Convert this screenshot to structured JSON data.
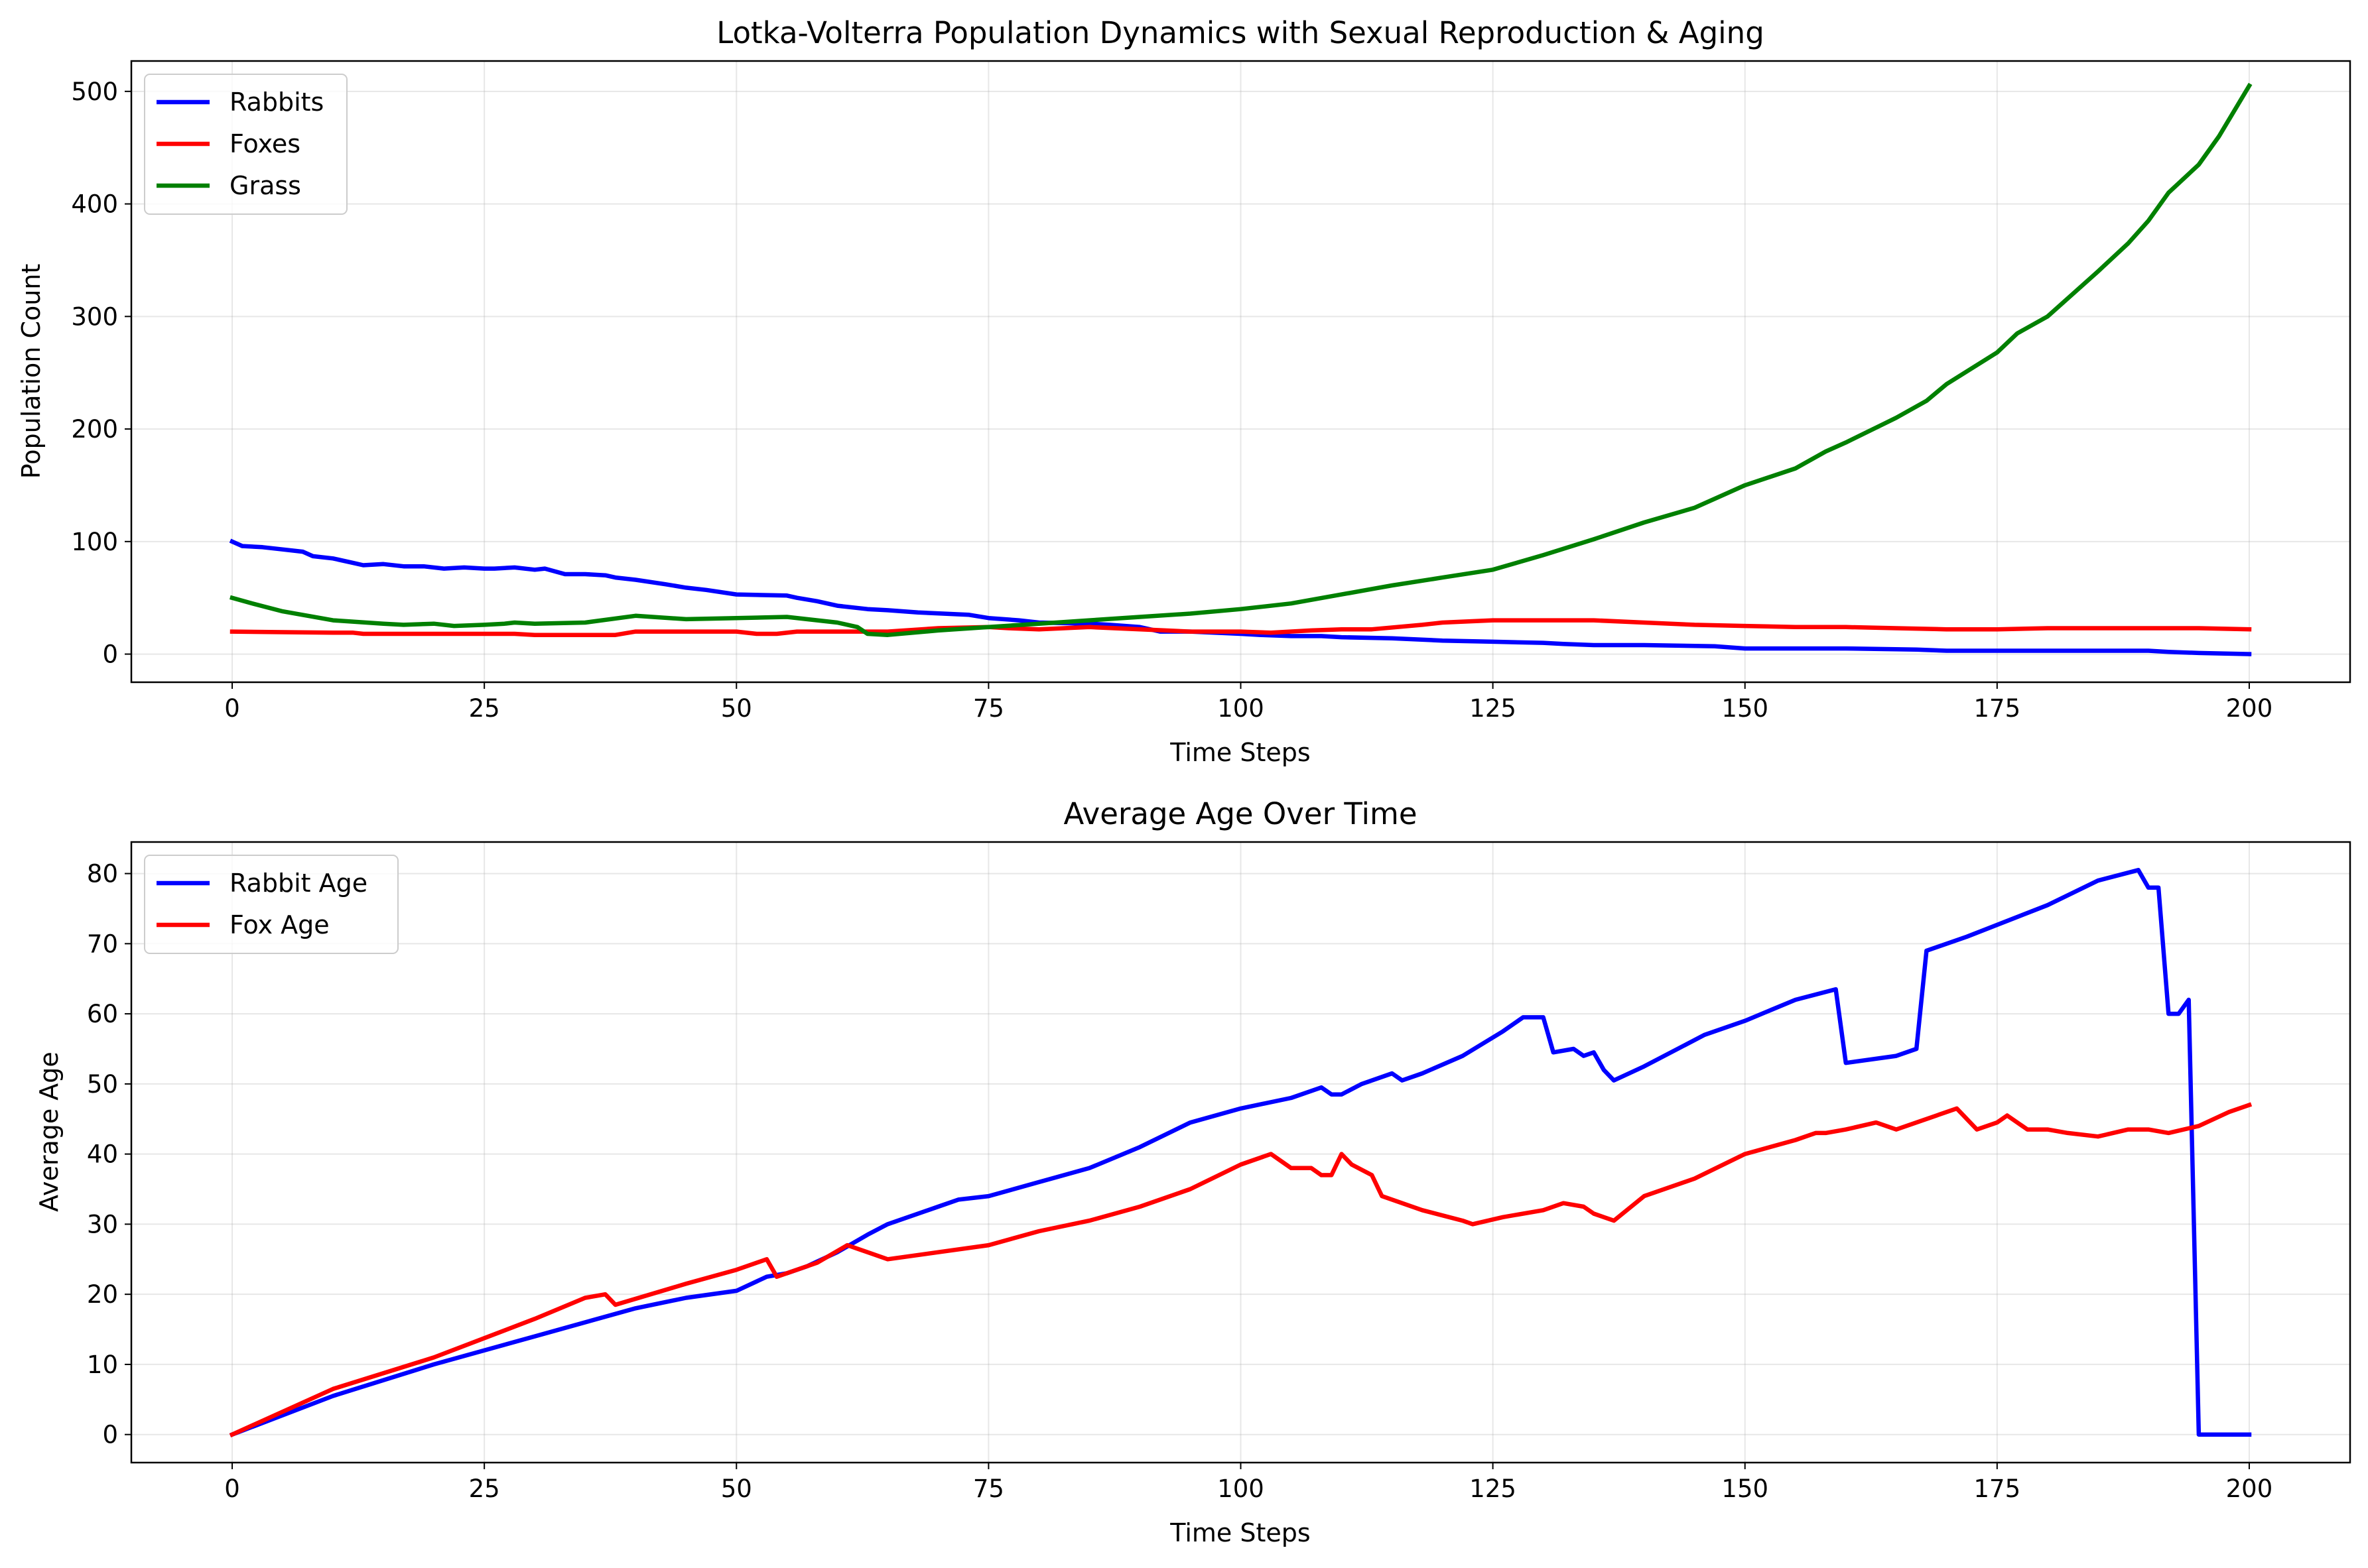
{
  "chart_data": [
    {
      "type": "line",
      "title": "Lotka-Volterra Population Dynamics with Sexual Reproduction & Aging",
      "xlabel": "Time Steps",
      "ylabel": "Population Count",
      "xlim": [
        -10,
        210
      ],
      "ylim": [
        -25,
        527
      ],
      "xticks": [
        0,
        25,
        50,
        75,
        100,
        125,
        150,
        175,
        200
      ],
      "yticks": [
        0,
        100,
        200,
        300,
        400,
        500
      ],
      "grid": true,
      "legend_position": "upper-left",
      "series": [
        {
          "name": "Rabbits",
          "color": "#0000ff",
          "x": [
            0,
            1,
            3,
            5,
            7,
            8,
            10,
            12,
            13,
            15,
            17,
            19,
            21,
            23,
            25,
            26,
            28,
            30,
            31,
            33,
            35,
            37,
            38,
            40,
            43,
            45,
            47,
            50,
            55,
            56,
            58,
            60,
            63,
            65,
            68,
            73,
            75,
            78,
            80,
            85,
            87,
            90,
            92,
            95,
            100,
            102,
            105,
            108,
            110,
            115,
            120,
            125,
            130,
            132,
            135,
            137,
            140,
            147,
            150,
            155,
            160,
            167,
            170,
            175,
            185,
            190,
            192,
            195,
            200
          ],
          "y": [
            100,
            96,
            95,
            93,
            91,
            87,
            85,
            81,
            79,
            80,
            78,
            78,
            76,
            77,
            76,
            76,
            77,
            75,
            76,
            71,
            71,
            70,
            68,
            66,
            62,
            59,
            57,
            53,
            52,
            50,
            47,
            43,
            40,
            39,
            37,
            35,
            32,
            30,
            28,
            27,
            26,
            24,
            20,
            20,
            18,
            17,
            16,
            16,
            15,
            14,
            12,
            11,
            10,
            9,
            8,
            8,
            8,
            7,
            5,
            5,
            5,
            4,
            3,
            3,
            3,
            3,
            2,
            1,
            0
          ]
        },
        {
          "name": "Foxes",
          "color": "#ff0000",
          "x": [
            0,
            10,
            12,
            13,
            28,
            30,
            38,
            40,
            50,
            52,
            54,
            56,
            65,
            70,
            75,
            77,
            80,
            85,
            95,
            100,
            103,
            107,
            110,
            113,
            118,
            120,
            125,
            130,
            135,
            140,
            145,
            150,
            155,
            160,
            165,
            170,
            175,
            180,
            190,
            195,
            200
          ],
          "y": [
            20,
            19,
            19,
            18,
            18,
            17,
            17,
            20,
            20,
            18,
            18,
            20,
            20,
            23,
            24,
            23,
            22,
            24,
            20,
            20,
            19,
            21,
            22,
            22,
            26,
            28,
            30,
            30,
            30,
            28,
            26,
            25,
            24,
            24,
            23,
            22,
            22,
            23,
            23,
            23,
            22
          ]
        },
        {
          "name": "Grass",
          "color": "#008000",
          "x": [
            0,
            2,
            5,
            10,
            15,
            17,
            20,
            22,
            25,
            27,
            28,
            30,
            35,
            40,
            45,
            50,
            55,
            60,
            62,
            63,
            65,
            70,
            75,
            80,
            85,
            90,
            95,
            100,
            105,
            110,
            115,
            120,
            125,
            130,
            135,
            140,
            145,
            148,
            150,
            155,
            158,
            160,
            165,
            168,
            170,
            175,
            177,
            180,
            185,
            188,
            190,
            192,
            195,
            197,
            200
          ],
          "y": [
            50,
            45,
            38,
            30,
            27,
            26,
            27,
            25,
            26,
            27,
            28,
            27,
            28,
            34,
            31,
            32,
            33,
            28,
            24,
            18,
            17,
            21,
            24,
            27,
            30,
            33,
            36,
            40,
            45,
            53,
            61,
            68,
            75,
            88,
            102,
            117,
            130,
            142,
            150,
            165,
            180,
            188,
            210,
            225,
            240,
            268,
            285,
            300,
            340,
            365,
            385,
            410,
            435,
            460,
            505
          ]
        }
      ]
    },
    {
      "type": "line",
      "title": "Average Age Over Time",
      "xlabel": "Time Steps",
      "ylabel": "Average Age",
      "xlim": [
        -10,
        210
      ],
      "ylim": [
        -4,
        84.5
      ],
      "xticks": [
        0,
        25,
        50,
        75,
        100,
        125,
        150,
        175,
        200
      ],
      "yticks": [
        0,
        10,
        20,
        30,
        40,
        50,
        60,
        70,
        80
      ],
      "grid": true,
      "legend_position": "upper-left",
      "series": [
        {
          "name": "Rabbit Age",
          "color": "#0000ff",
          "x": [
            0,
            10,
            20,
            30,
            40,
            45,
            50,
            53,
            55,
            57,
            60,
            63,
            65,
            70,
            72,
            75,
            80,
            85,
            90,
            95,
            100,
            105,
            108,
            109,
            110,
            112,
            115,
            116,
            118,
            122,
            126,
            128,
            130,
            131,
            133,
            134,
            135,
            136,
            137,
            140,
            146,
            150,
            155,
            159,
            160,
            165,
            167,
            168,
            172,
            180,
            185,
            189,
            190,
            191,
            192,
            193,
            194,
            195,
            200
          ],
          "y": [
            0,
            5.5,
            10,
            14,
            18,
            19.5,
            20.5,
            22.5,
            23,
            24,
            26,
            28.5,
            30,
            32.5,
            33.5,
            34,
            36,
            38,
            41,
            44.5,
            46.5,
            48,
            49.5,
            48.5,
            48.5,
            50,
            51.5,
            50.5,
            51.5,
            54,
            57.5,
            59.5,
            59.5,
            54.5,
            55,
            54,
            54.5,
            52,
            50.5,
            52.5,
            57,
            59,
            62,
            63.5,
            53,
            54,
            55,
            69,
            71,
            75.5,
            79,
            80.5,
            78,
            78,
            60,
            60,
            62,
            0,
            0
          ]
        },
        {
          "name": "Fox Age",
          "color": "#ff0000",
          "x": [
            0,
            10,
            20,
            30,
            35,
            37,
            38,
            45,
            50,
            53,
            54,
            58,
            61,
            62,
            63,
            65,
            70,
            75,
            80,
            85,
            90,
            95,
            100,
            103,
            105,
            107,
            108,
            109,
            110,
            111,
            113,
            114,
            118,
            122,
            123,
            126,
            130,
            132,
            134,
            135,
            136,
            137,
            140,
            145,
            150,
            155,
            157,
            158,
            160,
            163,
            165,
            170,
            171,
            173,
            175,
            176,
            178,
            180,
            182,
            185,
            188,
            190,
            192,
            195,
            198,
            200
          ],
          "y": [
            0,
            6.5,
            11,
            16.5,
            19.5,
            20,
            18.5,
            21.5,
            23.5,
            25,
            22.5,
            24.5,
            27,
            26.5,
            26,
            25,
            26,
            27,
            29,
            30.5,
            32.5,
            35,
            38.5,
            40,
            38,
            38,
            37,
            37,
            40,
            38.5,
            37,
            34,
            32,
            30.5,
            30,
            31,
            32,
            33,
            32.5,
            31.5,
            31,
            30.5,
            34,
            36.5,
            40,
            42,
            43,
            43,
            43.5,
            44.5,
            43.5,
            46,
            46.5,
            43.5,
            44.5,
            45.5,
            43.5,
            43.5,
            43,
            42.5,
            43.5,
            43.5,
            43,
            44,
            46,
            47
          ]
        }
      ]
    }
  ]
}
